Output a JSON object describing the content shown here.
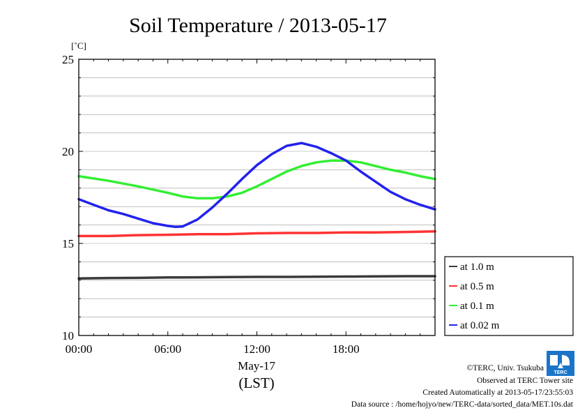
{
  "chart_data": {
    "type": "line",
    "title": "Soil Temperature / 2013-05-17",
    "ylabel": "[˚C]",
    "xlabel": "May-17",
    "xlabel_note": "(LST)",
    "ylim": [
      10,
      25
    ],
    "xlim": [
      0,
      24
    ],
    "yticks": [
      {
        "value": 10,
        "label": "10"
      },
      {
        "value": 15,
        "label": "15"
      },
      {
        "value": 20,
        "label": "20"
      },
      {
        "value": 25,
        "label": "25"
      }
    ],
    "xticks": [
      {
        "value": 0,
        "label": "00:00"
      },
      {
        "value": 6,
        "label": "06:00"
      },
      {
        "value": 12,
        "label": "12:00"
      },
      {
        "value": 18,
        "label": "18:00"
      }
    ],
    "grid": true,
    "legend_position": "right",
    "series": [
      {
        "name": "at 1.0 m",
        "color": "#3a3a3a",
        "x": [
          0,
          2,
          4,
          6,
          8,
          10,
          12,
          14,
          16,
          18,
          20,
          22,
          24
        ],
        "y": [
          13.1,
          13.12,
          13.13,
          13.15,
          13.16,
          13.17,
          13.18,
          13.18,
          13.19,
          13.2,
          13.21,
          13.22,
          13.22
        ]
      },
      {
        "name": "at 0.5 m",
        "color": "#ff3333",
        "x": [
          0,
          2,
          4,
          6,
          8,
          10,
          12,
          14,
          16,
          18,
          20,
          22,
          24
        ],
        "y": [
          15.4,
          15.4,
          15.45,
          15.47,
          15.5,
          15.5,
          15.55,
          15.57,
          15.57,
          15.6,
          15.6,
          15.62,
          15.65
        ]
      },
      {
        "name": "at 0.1 m",
        "color": "#33ee33",
        "x": [
          0,
          2,
          4,
          6,
          7,
          8,
          9,
          10,
          11,
          12,
          13,
          14,
          15,
          16,
          17,
          18,
          19,
          20,
          21,
          22,
          23,
          24
        ],
        "y": [
          18.65,
          18.4,
          18.1,
          17.75,
          17.55,
          17.45,
          17.45,
          17.55,
          17.75,
          18.1,
          18.5,
          18.9,
          19.2,
          19.4,
          19.5,
          19.5,
          19.4,
          19.2,
          19.0,
          18.85,
          18.65,
          18.5
        ]
      },
      {
        "name": "at 0.02 m",
        "color": "#2222ee",
        "x": [
          0,
          1,
          2,
          3,
          4,
          5,
          6,
          6.5,
          7,
          8,
          9,
          10,
          11,
          12,
          13,
          14,
          15,
          16,
          17,
          18,
          19,
          20,
          21,
          22,
          23,
          24
        ],
        "y": [
          17.4,
          17.1,
          16.8,
          16.6,
          16.35,
          16.1,
          15.95,
          15.9,
          15.92,
          16.3,
          16.95,
          17.7,
          18.5,
          19.25,
          19.85,
          20.3,
          20.45,
          20.25,
          19.9,
          19.5,
          18.9,
          18.35,
          17.8,
          17.4,
          17.1,
          16.85
        ]
      }
    ]
  },
  "footer": {
    "copyright": "©TERC, Univ. Tsukuba",
    "observed": "Observed at TERC Tower site",
    "created": "Created Automatically at 2013-05-17/23:55:03",
    "source": "Data source : /home/hojyo/new/TERC-data/sorted_data/MET.10s.dat",
    "logo_text": "TERC"
  }
}
